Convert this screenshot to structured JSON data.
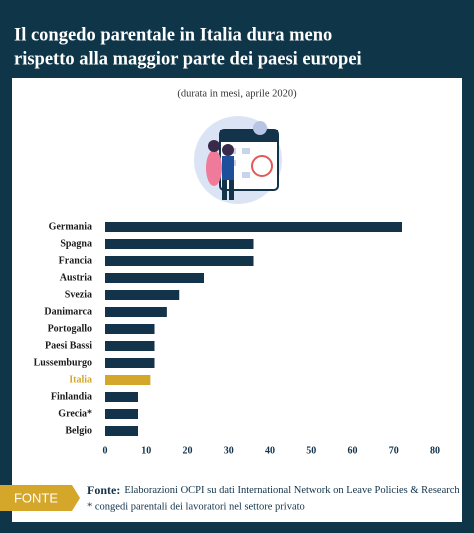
{
  "chart_data": {
    "type": "bar",
    "orientation": "horizontal",
    "title": [
      "Il congedo parentale in Italia dura meno",
      "rispetto alla maggior parte dei paesi europei"
    ],
    "subtitle": "(durata in mesi, aprile 2020)",
    "categories": [
      "Germania",
      "Spagna",
      "Francia",
      "Austria",
      "Svezia",
      "Danimarca",
      "Portogallo",
      "Paesi Bassi",
      "Lussemburgo",
      "Italia",
      "Finlandia",
      "Grecia*",
      "Belgio"
    ],
    "values": [
      72,
      36,
      36,
      24,
      18,
      15,
      12,
      12,
      12,
      11,
      8,
      8,
      8
    ],
    "colors": [
      "#12334a",
      "#12334a",
      "#12334a",
      "#12334a",
      "#12334a",
      "#12334a",
      "#12334a",
      "#12334a",
      "#12334a",
      "#d4a62a",
      "#12334a",
      "#12334a",
      "#12334a"
    ],
    "xlim": [
      0,
      80
    ],
    "xticks": [
      0,
      10,
      20,
      30,
      40,
      50,
      60,
      70,
      80
    ],
    "grid": false,
    "source_tag": "FONTE",
    "source_label": "Fonte:",
    "source": "Elaborazioni OCPI su dati International Network on Leave Policies & Research",
    "note": "* congedi parentali dei lavoratori nel settore privato"
  }
}
